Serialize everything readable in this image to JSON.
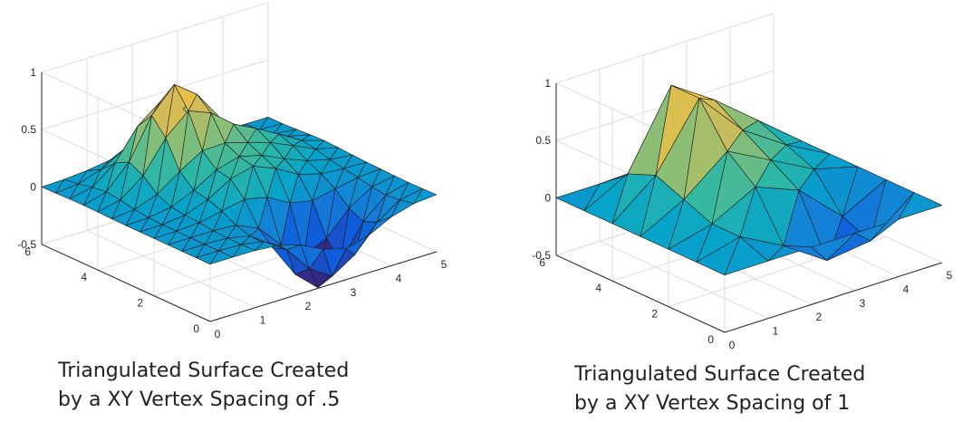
{
  "charts": [
    {
      "caption": [
        "Triangulated Surface Created",
        "by a XY Vertex Spacing of .5"
      ],
      "chart_data": {
        "type": "surface",
        "title": "",
        "xlabel": "",
        "ylabel": "",
        "zlabel": "",
        "xlim": [
          0,
          5
        ],
        "ylim": [
          0,
          6
        ],
        "zlim": [
          -0.5,
          1
        ],
        "x_ticks": [
          "0",
          "1",
          "2",
          "3",
          "4",
          "5"
        ],
        "y_ticks": [
          "0",
          "2",
          "4",
          "6"
        ],
        "z_ticks": [
          "-0.5",
          "0",
          "0.5",
          "1"
        ],
        "grid": true,
        "colormap": "parula",
        "vertex_spacing": 0.5,
        "peaks": [
          {
            "x": 2.0,
            "y": 4.5,
            "z": 0.8
          },
          {
            "x": 3.5,
            "y": 4.0,
            "z": 0.25
          },
          {
            "x": 2.5,
            "y": 2.5,
            "z": 0.3
          },
          {
            "x": 3.0,
            "y": 1.0,
            "z": -0.7
          }
        ]
      }
    },
    {
      "caption": [
        "Triangulated Surface Created",
        "by a XY Vertex Spacing of 1"
      ],
      "chart_data": {
        "type": "surface",
        "title": "",
        "xlabel": "",
        "ylabel": "",
        "zlabel": "",
        "xlim": [
          0,
          5
        ],
        "ylim": [
          0,
          6
        ],
        "zlim": [
          -0.5,
          1
        ],
        "x_ticks": [
          "0",
          "1",
          "2",
          "3",
          "4",
          "5"
        ],
        "y_ticks": [
          "0",
          "2",
          "4",
          "6"
        ],
        "z_ticks": [
          "-0.5",
          "0",
          "0.5",
          "1"
        ],
        "grid": true,
        "colormap": "parula",
        "vertex_spacing": 1,
        "grid_z": [
          [
            0,
            0,
            0,
            0,
            0,
            0
          ],
          [
            0,
            0.1,
            -0.1,
            -0.35,
            -0.3,
            0
          ],
          [
            0,
            0.1,
            0.3,
            0.15,
            -0.2,
            0
          ],
          [
            0,
            0.2,
            0.5,
            0.3,
            0.1,
            0
          ],
          [
            0,
            0.3,
            0.85,
            0.45,
            0.2,
            0
          ],
          [
            0,
            0.2,
            0.85,
            0.6,
            0.3,
            0
          ],
          [
            0,
            0,
            0,
            0,
            0,
            0
          ]
        ]
      }
    }
  ],
  "colors": {
    "axis": "#262626",
    "grid": "#dcdcdc",
    "edge": "#1a1a1a",
    "parula": [
      "#352a87",
      "#0f5cdd",
      "#1481d6",
      "#06a4ca",
      "#2eb7a4",
      "#87bf77",
      "#d1bb59",
      "#fec832",
      "#f9fb0e"
    ]
  }
}
